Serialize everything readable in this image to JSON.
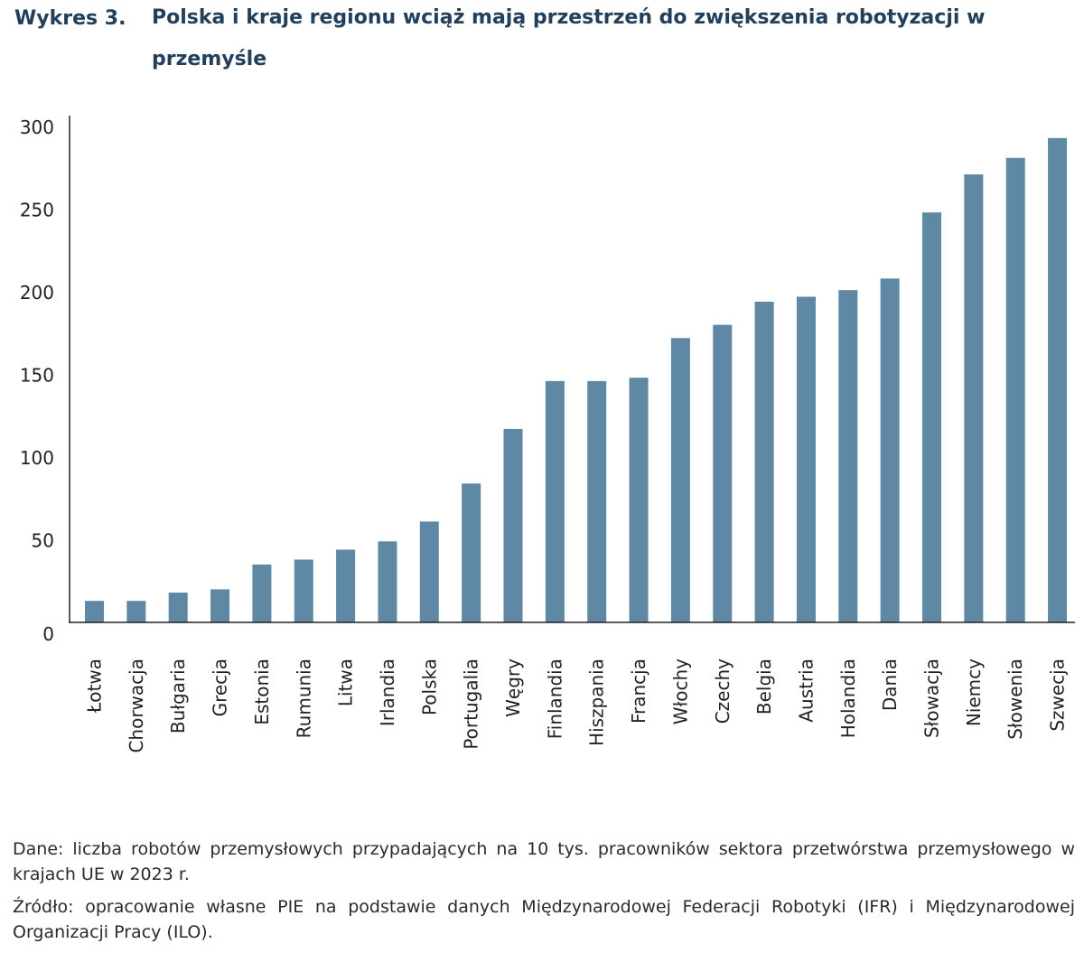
{
  "header": {
    "label": "Wykres 3.",
    "title": "Polska i kraje regionu wciąż mają przestrzeń do zwiększenia robotyzacji w przemyśle"
  },
  "chart_data": {
    "type": "bar",
    "categories": [
      "Łotwa",
      "Chorwacja",
      "Bułgaria",
      "Grecja",
      "Estonia",
      "Rumunia",
      "Litwa",
      "Irlandia",
      "Polska",
      "Portugalia",
      "Węgry",
      "Finlandia",
      "Hiszpania",
      "Francja",
      "Włochy",
      "Czechy",
      "Belgia",
      "Austria",
      "Holandia",
      "Dania",
      "Słowacja",
      "Niemcy",
      "Słowenia",
      "Szwecja"
    ],
    "values": [
      13,
      13,
      18,
      20,
      35,
      38,
      44,
      49,
      61,
      84,
      117,
      146,
      146,
      148,
      172,
      180,
      194,
      197,
      201,
      208,
      248,
      271,
      281,
      293
    ],
    "ylim": [
      0,
      300
    ],
    "yticks": [
      0,
      50,
      100,
      150,
      200,
      250,
      300
    ],
    "grid": false,
    "legend": "none",
    "bar_color": "#5e88a4"
  },
  "notes": {
    "data": "Dane: liczba robotów przemysłowych przypadających na 10 tys. pracowników sektora przetwórstwa przemysłowego w krajach UE w 2023 r.",
    "source": "Źródło: opracowanie własne PIE na podstawie danych Międzynarodowej Federacji Robotyki (IFR) i Międzynarodowej Organizacji Pracy (ILO)."
  }
}
